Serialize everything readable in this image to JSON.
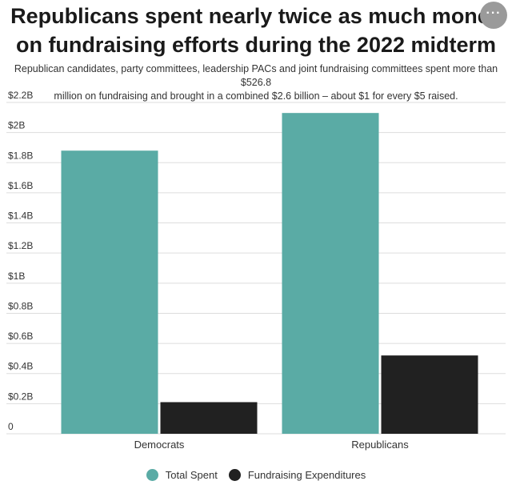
{
  "title_line1": "Republicans spent nearly twice as much money",
  "title_line2": "on fundraising efforts during the 2022 midterm",
  "subtitle_line1": "Republican candidates, party committees, leadership PACs and joint fundraising committees spent more than $526.8",
  "subtitle_line2": "million on fundraising and brought in a combined $2.6 billion – about $1 for every $5 raised.",
  "more_icon": "more-horizontal-icon",
  "more_label": "···",
  "colors": {
    "total": "#5aaba5",
    "fundraising": "#212121",
    "grid": "#dddddd"
  },
  "chart_data": {
    "type": "bar",
    "categories": [
      "Democrats",
      "Republicans"
    ],
    "series": [
      {
        "name": "Total Spent",
        "values": [
          1.88,
          2.13
        ]
      },
      {
        "name": "Fundraising Expenditures",
        "values": [
          0.21,
          0.52
        ]
      }
    ],
    "ylim": [
      0,
      2.2
    ],
    "yticks": [
      0,
      0.2,
      0.4,
      0.6,
      0.8,
      1,
      1.2,
      1.4,
      1.6,
      1.8,
      2,
      2.2
    ],
    "ytick_labels": [
      "0",
      "$0.2B",
      "$0.4B",
      "$0.6B",
      "$0.8B",
      "$1B",
      "$1.2B",
      "$1.4B",
      "$1.6B",
      "$1.8B",
      "$2B",
      "$2.2B"
    ],
    "grid": true,
    "legend": "bottom"
  }
}
